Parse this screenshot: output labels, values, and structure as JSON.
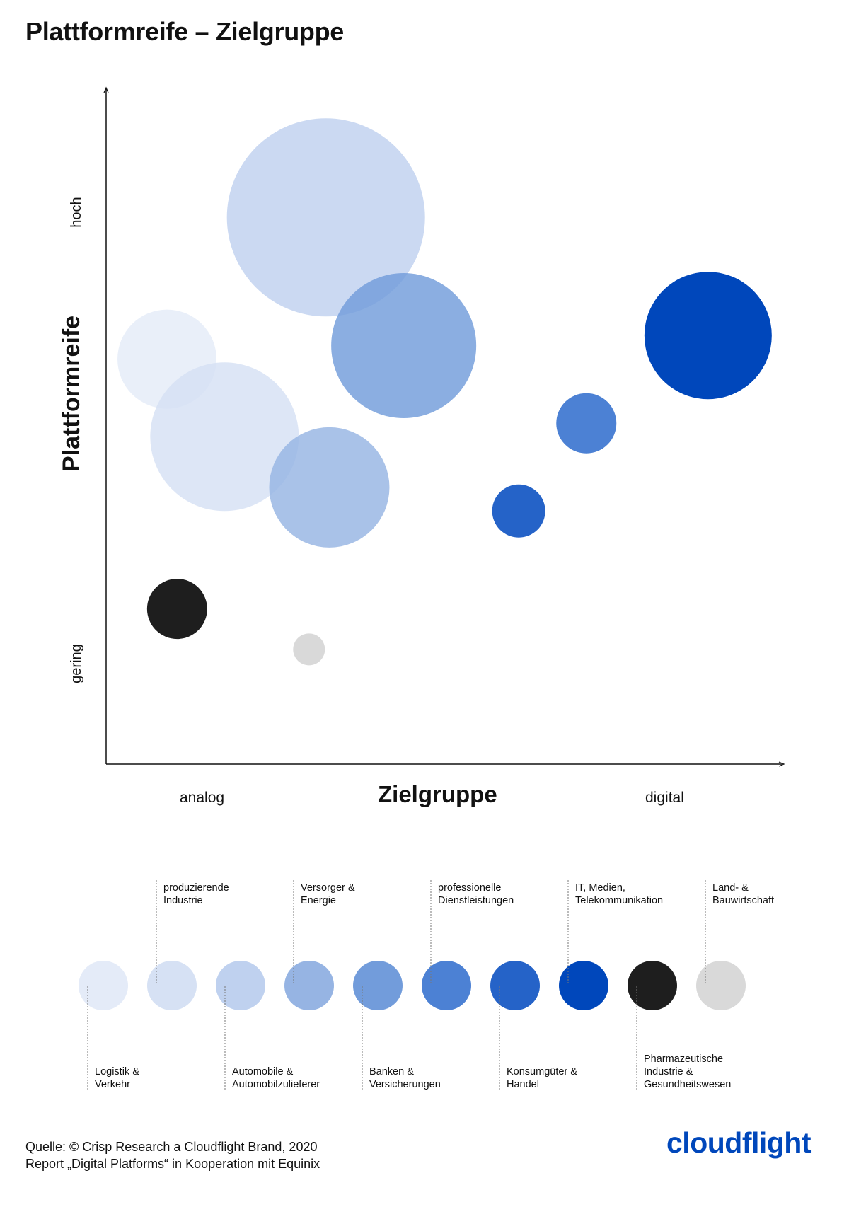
{
  "title": "Plattformreife – Zielgruppe",
  "chart_data": {
    "type": "bubble",
    "title": "Plattformreife – Zielgruppe",
    "xlabel": "Zielgruppe",
    "ylabel": "Plattformreife",
    "x_ticks": [
      "analog",
      "digital"
    ],
    "y_ticks": [
      "hoch",
      "gering"
    ],
    "x_scale": "ordinal analog → digital (approx. 0–100)",
    "y_scale": "ordinal gering → hoch (approx. 0–100)",
    "xlim": [
      0,
      100
    ],
    "ylim": [
      0,
      100
    ],
    "series": [
      {
        "name": "Logistik & Verkehr",
        "color": "#e4ebf8",
        "x": 9,
        "y": 60,
        "size": 14
      },
      {
        "name": "produzierende Industrie",
        "color": "#d6e1f4",
        "x": 17.5,
        "y": 48.5,
        "size": 21
      },
      {
        "name": "Automobile & Automobilzulieferer",
        "color": "#bfd1ef",
        "x": 32.5,
        "y": 81,
        "size": 28
      },
      {
        "name": "Versorger & Energie",
        "color": "#96b4e3",
        "x": 33,
        "y": 41,
        "size": 17
      },
      {
        "name": "Banken & Versicherungen",
        "color": "#729cdb",
        "x": 44,
        "y": 62,
        "size": 20.5
      },
      {
        "name": "professionelle Dienstleistungen",
        "color": "#4c81d4",
        "x": 71,
        "y": 50.5,
        "size": 8.5
      },
      {
        "name": "Konsumgüter & Handel",
        "color": "#2563c8",
        "x": 61,
        "y": 37.5,
        "size": 7.5
      },
      {
        "name": "IT, Medien, Telekommunikation",
        "color": "#0047bb",
        "x": 89,
        "y": 63.5,
        "size": 18
      },
      {
        "name": "Pharmazeutische Industrie & Gesundheitswesen",
        "color": "#1e1e1e",
        "x": 10.5,
        "y": 23,
        "size": 8.5
      },
      {
        "name": "Land- & Bauwirtschaft",
        "color": "#d9d9d9",
        "x": 30,
        "y": 17,
        "size": 4.5
      }
    ]
  },
  "legend": [
    {
      "lines": [
        "Logistik &",
        "Verkehr"
      ],
      "color": "#e4ebf8",
      "position": "below"
    },
    {
      "lines": [
        "produzierende",
        "Industrie"
      ],
      "color": "#d6e1f4",
      "position": "above"
    },
    {
      "lines": [
        "Automobile &",
        "Automobilzulieferer"
      ],
      "color": "#bfd1ef",
      "position": "below"
    },
    {
      "lines": [
        "Versorger &",
        "Energie"
      ],
      "color": "#96b4e3",
      "position": "above"
    },
    {
      "lines": [
        "Banken &",
        "Versicherungen"
      ],
      "color": "#729cdb",
      "position": "below"
    },
    {
      "lines": [
        "professionelle",
        "Dienstleistungen"
      ],
      "color": "#4c81d4",
      "position": "above"
    },
    {
      "lines": [
        "Konsumgüter &",
        "Handel"
      ],
      "color": "#2563c8",
      "position": "below"
    },
    {
      "lines": [
        "IT, Medien,",
        "Telekommunikation"
      ],
      "color": "#0047bb",
      "position": "above"
    },
    {
      "lines": [
        "Pharmazeutische",
        "Industrie &",
        "Gesundheitswesen"
      ],
      "color": "#1e1e1e",
      "position": "below"
    },
    {
      "lines": [
        "Land- &",
        "Bauwirtschaft"
      ],
      "color": "#d9d9d9",
      "position": "above"
    }
  ],
  "source": {
    "line1": "Quelle: © Crisp Research a Cloudflight Brand, 2020",
    "line2": "Report „Digital Platforms“ in Kooperation mit Equinix"
  },
  "brand": "cloudflight"
}
